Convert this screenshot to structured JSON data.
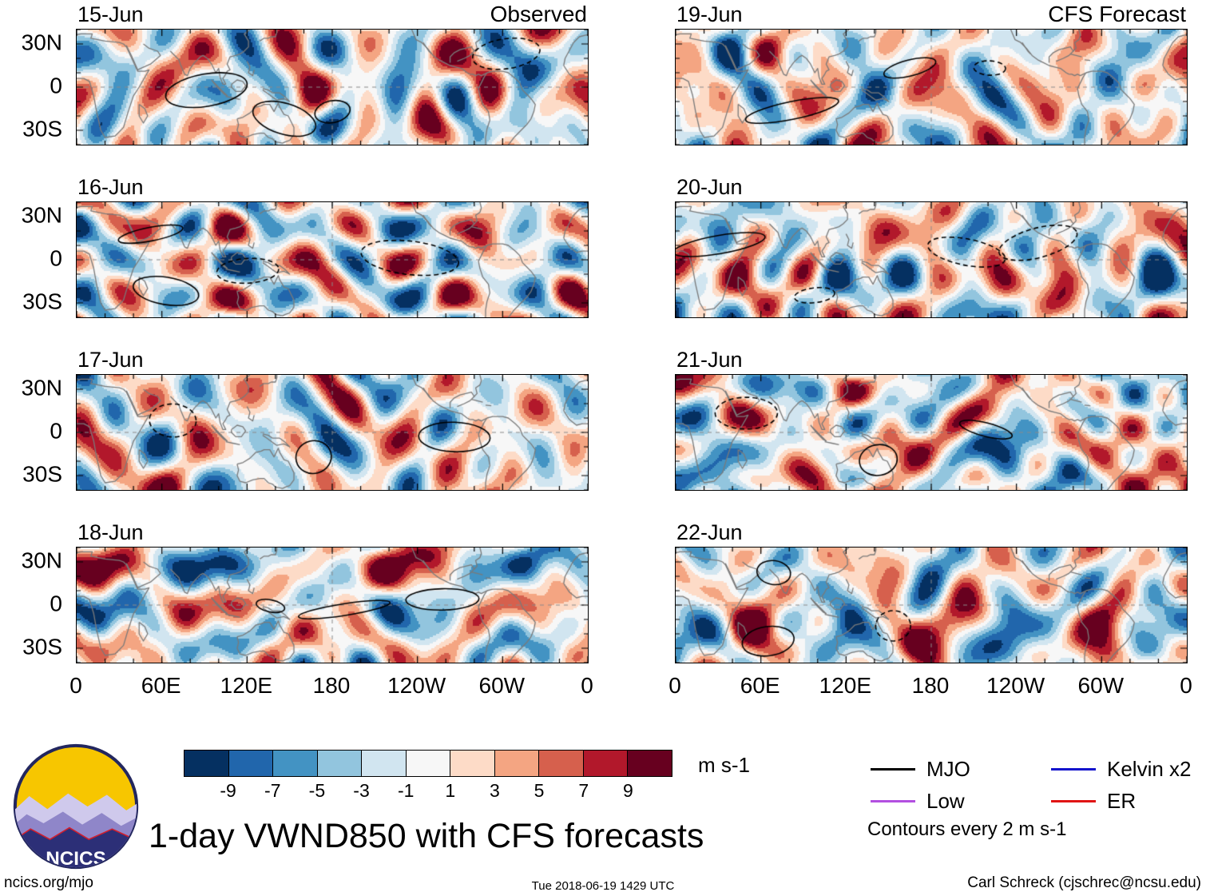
{
  "chart_data": {
    "type": "heatmap",
    "title": "1-day VWND850 with CFS forecasts",
    "variable": "VWND850 anomaly maps",
    "units": "m s-1",
    "columns": [
      {
        "label": "Observed",
        "dates": [
          "15-Jun",
          "16-Jun",
          "17-Jun",
          "18-Jun"
        ]
      },
      {
        "label": "CFS Forecast",
        "dates": [
          "19-Jun",
          "20-Jun",
          "21-Jun",
          "22-Jun"
        ]
      }
    ],
    "x_ticks": [
      "0",
      "60E",
      "120E",
      "180",
      "120W",
      "60W",
      "0"
    ],
    "y_ticks": [
      "30N",
      "0",
      "30S"
    ],
    "lon_range_deg": [
      0,
      360
    ],
    "lat_range_deg": [
      -40,
      40
    ],
    "grid": "dashed line at equator and dateline",
    "colorbar": {
      "levels": [
        "-9",
        "-7",
        "-5",
        "-3",
        "-1",
        "1",
        "3",
        "5",
        "7",
        "9"
      ],
      "colors": [
        "#053061",
        "#2166ac",
        "#4393c3",
        "#92c5de",
        "#d1e5f0",
        "#f7f7f7",
        "#fddbc7",
        "#f4a582",
        "#d6604d",
        "#b2182b",
        "#67001f"
      ],
      "units_label": "m s-1"
    },
    "legend": [
      {
        "label": "MJO",
        "color": "#000000"
      },
      {
        "label": "Kelvin x2",
        "color": "#1414cc"
      },
      {
        "label": "Low",
        "color": "#b24fe0"
      },
      {
        "label": "ER",
        "color": "#e01414"
      }
    ],
    "contour_note": "Contours every 2 m s-1"
  },
  "logo": {
    "text": "NCICS"
  },
  "footer": {
    "left": "ncics.org/mjo",
    "center": "Tue 2018-06-19 1429 UTC",
    "right": "Carl Schreck (cjschrec@ncsu.edu)"
  }
}
